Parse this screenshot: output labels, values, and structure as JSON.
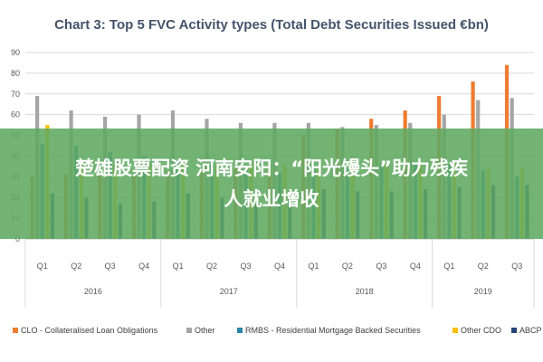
{
  "overlay": {
    "line1": "楚雄股票配资 河南安阳：“阳光馒头”助力残疾",
    "line2": "人就业增收"
  },
  "chart_data": {
    "type": "bar",
    "title": "Chart 3: Top 5 FVC Activity types (Total Debt Securities Issued €bn)",
    "xlabel": "",
    "ylabel": "",
    "ylim": [
      0,
      90
    ],
    "yticks": [
      0,
      10,
      20,
      30,
      40,
      50,
      60,
      70,
      80,
      90
    ],
    "grid": true,
    "legend_position": "bottom",
    "categories": [
      "Q1",
      "Q2",
      "Q3",
      "Q4",
      "Q1",
      "Q2",
      "Q3",
      "Q4",
      "Q1",
      "Q2",
      "Q3",
      "Q4",
      "Q1",
      "Q2",
      "Q3"
    ],
    "groups": [
      {
        "label": "2016",
        "count": 4
      },
      {
        "label": "2017",
        "count": 4
      },
      {
        "label": "2018",
        "count": 4
      },
      {
        "label": "2019",
        "count": 3
      }
    ],
    "series": [
      {
        "name": "CLO - Collateralised Loan Obligations",
        "color": "#ed7d31",
        "values": [
          30,
          31,
          31,
          31,
          33,
          33,
          34,
          36,
          50,
          53,
          58,
          62,
          69,
          76,
          84
        ]
      },
      {
        "name": "Other",
        "color": "#a5a5a5",
        "values": [
          69,
          62,
          59,
          60,
          62,
          58,
          56,
          56,
          56,
          54,
          55,
          56,
          60,
          67,
          68
        ]
      },
      {
        "name": "RMBS - Residential Mortgage Backed Securities",
        "color": "#2e86ab",
        "values": [
          46,
          45,
          42,
          40,
          38,
          36,
          34,
          32,
          36,
          34,
          36,
          37,
          36,
          33,
          30
        ]
      },
      {
        "name": "Other CDO",
        "color": "#ffc000",
        "values": [
          55,
          36,
          36,
          36,
          37,
          36,
          36,
          36,
          34,
          36,
          36,
          36,
          36,
          34,
          34
        ]
      },
      {
        "name": "ABCP",
        "color": "#264478",
        "values": [
          22,
          20,
          17,
          18,
          22,
          20,
          20,
          20,
          24,
          23,
          23,
          24,
          25,
          26,
          26
        ]
      }
    ]
  }
}
